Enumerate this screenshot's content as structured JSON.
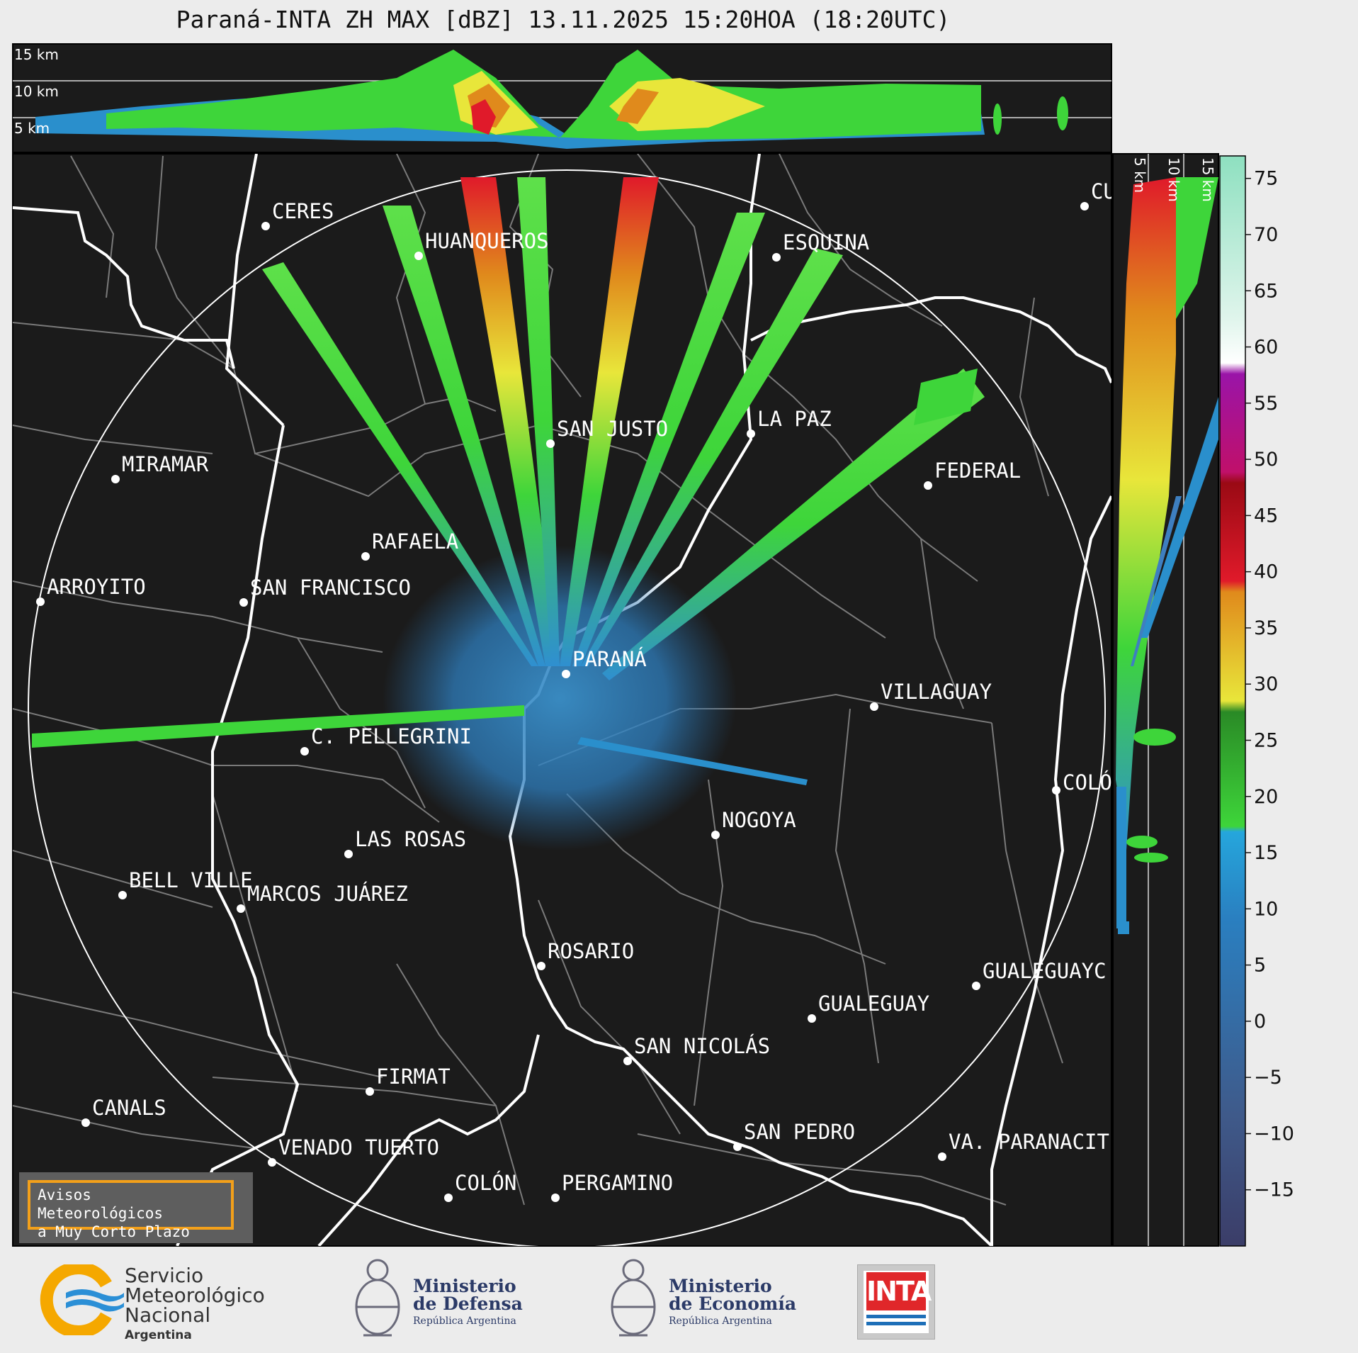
{
  "title": "Paraná-INTA ZH MAX [dBZ] 13.11.2025 15:20HOA (18:20UTC)",
  "top_panel_altitudes": [
    "15 km",
    "10 km",
    "5 km"
  ],
  "side_panel_altitudes": [
    "5 km",
    "10 km",
    "15 km"
  ],
  "colorbar": {
    "ticks": [
      "75",
      "70",
      "65",
      "60",
      "55",
      "50",
      "45",
      "40",
      "35",
      "30",
      "25",
      "20",
      "15",
      "10",
      "5",
      "0",
      "−5",
      "−10",
      "−15"
    ],
    "range_dbz": [
      -20,
      77
    ],
    "colors": {
      "dark_low": "#3b3d68",
      "blue": "#2f8fd0",
      "green": "#3ed53a",
      "yellow": "#e8e63a",
      "orange": "#e08a1c",
      "red": "#e01a2a",
      "magenta": "#d010d8",
      "white": "#ffffff",
      "mint": "#8ee0c0"
    }
  },
  "cities": [
    {
      "name": "CERES"
    },
    {
      "name": "HUANQUEROS"
    },
    {
      "name": "ESQUINA"
    },
    {
      "name": "CU"
    },
    {
      "name": "SAN JUSTO"
    },
    {
      "name": "LA PAZ"
    },
    {
      "name": "MIRAMAR"
    },
    {
      "name": "FEDERAL"
    },
    {
      "name": "RAFAELA"
    },
    {
      "name": "ARROYITO"
    },
    {
      "name": "SAN FRANCISCO"
    },
    {
      "name": "PARANÁ"
    },
    {
      "name": "VILLAGUAY"
    },
    {
      "name": "C. PELLEGRINI"
    },
    {
      "name": "COLÓ"
    },
    {
      "name": "NOGOYA"
    },
    {
      "name": "LAS ROSAS"
    },
    {
      "name": "BELL VILLE"
    },
    {
      "name": "MARCOS JUÁREZ"
    },
    {
      "name": "ROSARIO"
    },
    {
      "name": "GUALEGUAYC"
    },
    {
      "name": "GUALEGUAY"
    },
    {
      "name": "SAN NICOLÁS"
    },
    {
      "name": "FIRMAT"
    },
    {
      "name": "CANALS"
    },
    {
      "name": "SAN PEDRO"
    },
    {
      "name": "VENADO TUERTO"
    },
    {
      "name": "VA. PARANACIT"
    },
    {
      "name": "COLÓN"
    },
    {
      "name": "PERGAMINO"
    }
  ],
  "warning_box": {
    "line1": "Avisos Meteorológicos",
    "line2": "a Muy Corto Plazo"
  },
  "footer": {
    "smn": {
      "line1": "Servicio",
      "line2": "Meteorológico",
      "line3": "Nacional",
      "line4": "Argentina"
    },
    "defensa": {
      "line1": "Ministerio",
      "line2": "de Defensa",
      "line3": "República Argentina"
    },
    "economia": {
      "line1": "Ministerio",
      "line2": "de Economía",
      "line3": "República Argentina"
    },
    "inta": {
      "text": "INTA"
    }
  }
}
